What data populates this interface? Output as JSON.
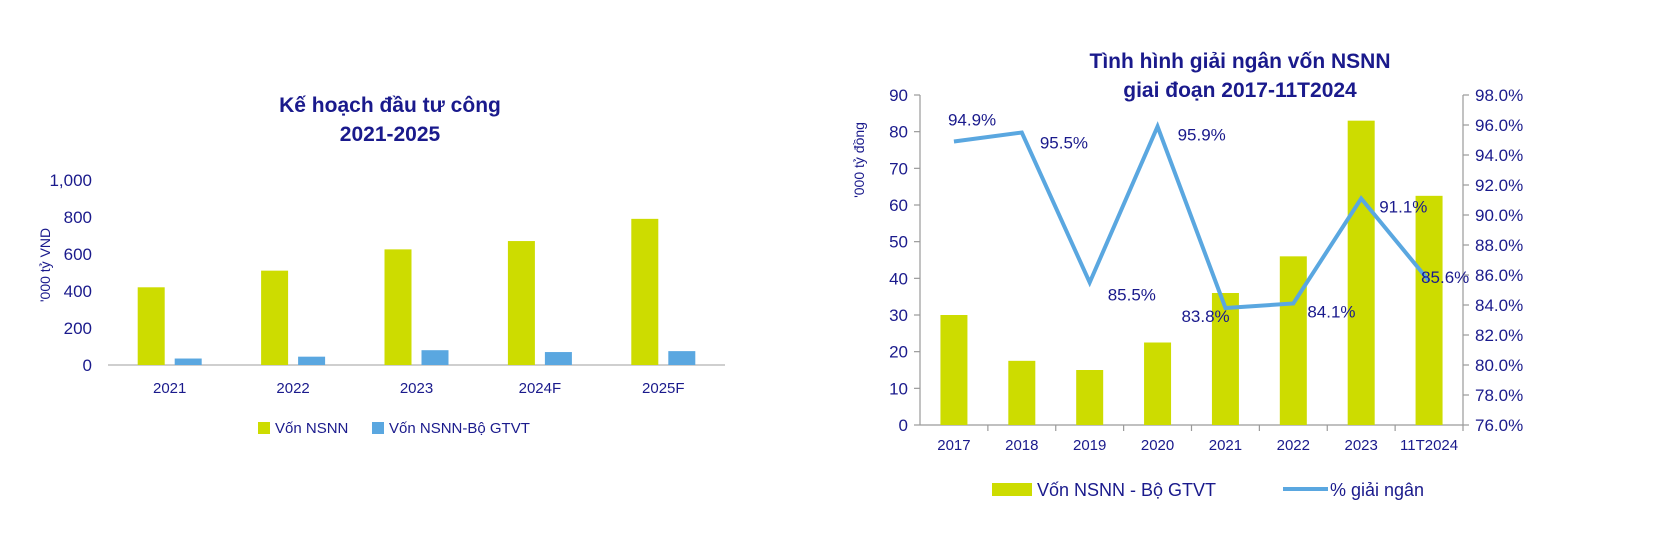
{
  "colors": {
    "nsnn": "#cddc00",
    "gtvt": "#5aa7e0",
    "line": "#5aa7e0",
    "text": "#1a1a8c",
    "axis": "#bfbfbf"
  },
  "chart_data": [
    {
      "type": "bar",
      "title": [
        "Kế hoạch đầu tư công",
        "2021-2025"
      ],
      "ylabel": "'000 tỷ VND",
      "xlabel": "",
      "ylim": [
        0,
        1000
      ],
      "ytick_labels": [
        "0",
        "200",
        "400",
        "600",
        "800",
        "1,000"
      ],
      "ytick_values": [
        0,
        200,
        400,
        600,
        800,
        1000
      ],
      "categories": [
        "2021",
        "2022",
        "2023",
        "2024F",
        "2025F"
      ],
      "series": [
        {
          "name": "Vốn NSNN",
          "values": [
            420,
            510,
            625,
            670,
            790
          ]
        },
        {
          "name": "Vốn NSNN-Bộ GTVT",
          "values": [
            35,
            45,
            80,
            70,
            75
          ]
        }
      ],
      "legend": "bottom",
      "grid": false
    },
    {
      "type": "bar+line",
      "title": [
        "Tình hình giải ngân vốn NSNN",
        "giai đoạn 2017-11T2024"
      ],
      "ylabel": "'000 tỷ đồng",
      "ylim": [
        0,
        90
      ],
      "ytick_labels": [
        "0",
        "10",
        "20",
        "30",
        "40",
        "50",
        "60",
        "70",
        "80",
        "90"
      ],
      "ytick_values": [
        0,
        10,
        20,
        30,
        40,
        50,
        60,
        70,
        80,
        90
      ],
      "y2lim": [
        76,
        98
      ],
      "y2tick_labels": [
        "76.0%",
        "78.0%",
        "80.0%",
        "82.0%",
        "84.0%",
        "86.0%",
        "88.0%",
        "90.0%",
        "92.0%",
        "94.0%",
        "96.0%",
        "98.0%"
      ],
      "y2tick_values": [
        76,
        78,
        80,
        82,
        84,
        86,
        88,
        90,
        92,
        94,
        96,
        98
      ],
      "categories": [
        "2017",
        "2018",
        "2019",
        "2020",
        "2021",
        "2022",
        "2023",
        "11T2024"
      ],
      "bars": {
        "name": "Vốn NSNN - Bộ GTVT",
        "values": [
          30,
          17.5,
          15,
          22.5,
          36,
          46,
          83,
          62.5
        ]
      },
      "line": {
        "name": "% giải ngân",
        "values": [
          94.9,
          95.5,
          85.5,
          95.9,
          83.8,
          84.1,
          91.1,
          85.6
        ],
        "labels": [
          "94.9%",
          "95.5%",
          "85.5%",
          "95.9%",
          "83.8%",
          "84.1%",
          "91.1%",
          "85.6%"
        ]
      },
      "legend": "bottom",
      "grid": false
    }
  ]
}
